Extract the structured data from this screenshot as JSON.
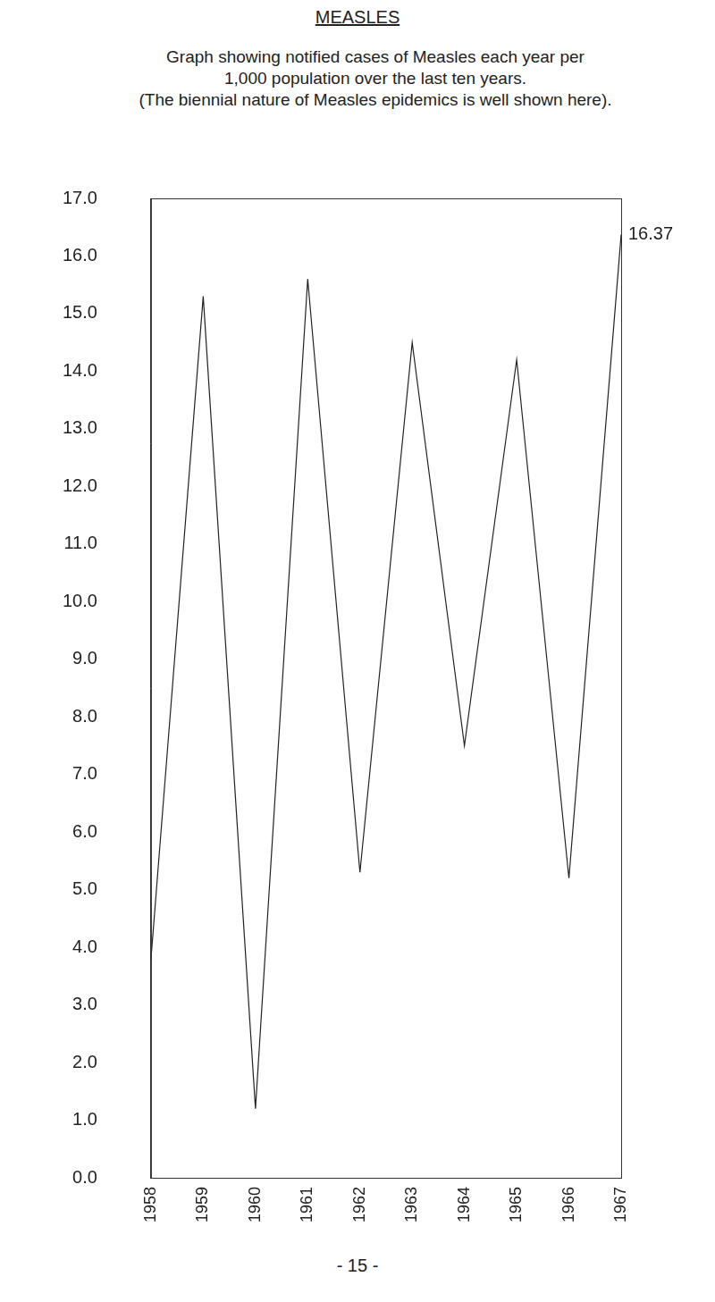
{
  "chart_data": {
    "type": "line",
    "title": "MEASLES",
    "subtitle": [
      "Graph showing notified cases of Measles each year per",
      "1,000 population over the last ten years.",
      "(The biennial nature of Measles epidemics is well shown here)."
    ],
    "categories": [
      "1958",
      "1959",
      "1960",
      "1961",
      "1962",
      "1963",
      "1964",
      "1965",
      "1966",
      "1967"
    ],
    "values": [
      3.8,
      15.3,
      1.2,
      15.6,
      5.3,
      14.5,
      7.5,
      14.2,
      5.2,
      16.37
    ],
    "color": "#222222",
    "ylim": [
      0,
      17
    ],
    "yticks": [
      {
        "value": 0,
        "label": "0.0"
      },
      {
        "value": 1,
        "label": "1.0"
      },
      {
        "value": 2,
        "label": "2.0"
      },
      {
        "value": 3,
        "label": "3.0"
      },
      {
        "value": 4,
        "label": "4.0"
      },
      {
        "value": 5,
        "label": "5.0"
      },
      {
        "value": 6,
        "label": "6.0"
      },
      {
        "value": 7,
        "label": "7.0"
      },
      {
        "value": 8,
        "label": "8.0"
      },
      {
        "value": 9,
        "label": "9.0"
      },
      {
        "value": 10,
        "label": "10.0"
      },
      {
        "value": 11,
        "label": "11.0"
      },
      {
        "value": 12,
        "label": "12.0"
      },
      {
        "value": 13,
        "label": "13.0"
      },
      {
        "value": 14,
        "label": "14.0"
      },
      {
        "value": 15,
        "label": "15.0"
      },
      {
        "value": 16,
        "label": "16.0"
      },
      {
        "value": 17,
        "label": "17.0"
      }
    ],
    "annotations": [
      {
        "category": "1967",
        "value": 16.37,
        "label": "16.37"
      }
    ],
    "grid": false,
    "footer": "- 15 -"
  }
}
